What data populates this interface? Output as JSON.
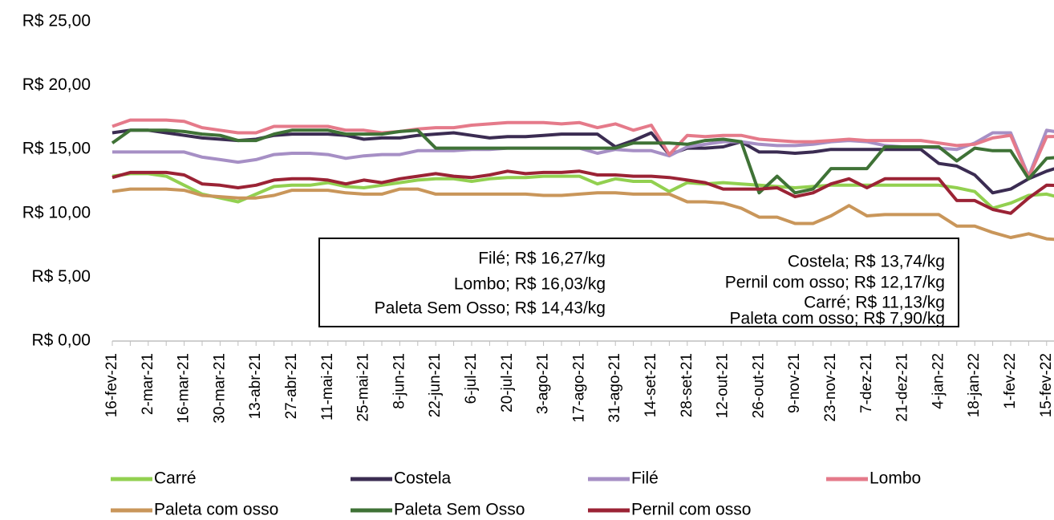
{
  "chart_data": {
    "type": "line",
    "categories": [
      "16-fev-21",
      null,
      "2-mar-21",
      null,
      "16-mar-21",
      null,
      "30-mar-21",
      null,
      "13-abr-21",
      null,
      "27-abr-21",
      null,
      "11-mai-21",
      null,
      "25-mai-21",
      null,
      "8-jun-21",
      null,
      "22-jun-21",
      null,
      "6-jul-21",
      null,
      "20-jul-21",
      null,
      "3-ago-21",
      null,
      "17-ago-21",
      null,
      "31-ago-21",
      null,
      "14-set-21",
      null,
      "28-set-21",
      null,
      "12-out-21",
      null,
      "26-out-21",
      null,
      "9-nov-21",
      null,
      "23-nov-21",
      null,
      "7-dez-21",
      null,
      "21-dez-21",
      null,
      "4-jan-22",
      null,
      "18-jan-22",
      null,
      "1-fev-22",
      null,
      "15-fev-22",
      null
    ],
    "series": [
      {
        "name": "Carré",
        "color": "#92d050",
        "values": [
          12.9,
          13.1,
          13.1,
          12.9,
          12.2,
          11.5,
          11.2,
          10.9,
          11.5,
          12.1,
          12.2,
          12.2,
          12.4,
          12.1,
          12.0,
          12.2,
          12.4,
          12.6,
          12.7,
          12.7,
          12.5,
          12.7,
          12.8,
          12.8,
          12.9,
          12.9,
          12.9,
          12.3,
          12.7,
          12.5,
          12.5,
          11.7,
          12.4,
          12.3,
          12.4,
          12.3,
          12.2,
          12.1,
          12.0,
          12.1,
          12.2,
          12.2,
          12.2,
          12.2,
          12.2,
          12.2,
          12.2,
          12.0,
          11.7,
          10.4,
          10.8,
          11.4,
          11.5,
          11.13
        ]
      },
      {
        "name": "Costela",
        "color": "#3b2c52",
        "values": [
          16.3,
          16.5,
          16.5,
          16.3,
          16.1,
          15.9,
          15.8,
          15.7,
          15.8,
          16.1,
          16.2,
          16.2,
          16.2,
          16.1,
          15.8,
          15.9,
          15.9,
          16.1,
          16.2,
          16.3,
          16.1,
          15.9,
          16.0,
          16.0,
          16.1,
          16.2,
          16.2,
          16.2,
          15.2,
          15.7,
          16.3,
          14.6,
          15.1,
          15.1,
          15.2,
          15.6,
          14.8,
          14.8,
          14.7,
          14.8,
          15.0,
          15.0,
          15.0,
          15.0,
          15.0,
          15.0,
          13.9,
          13.7,
          13.0,
          11.6,
          11.9,
          12.7,
          13.3,
          13.74
        ]
      },
      {
        "name": "Filé",
        "color": "#a68fc5",
        "values": [
          14.8,
          14.8,
          14.8,
          14.8,
          14.8,
          14.4,
          14.2,
          14.0,
          14.2,
          14.6,
          14.7,
          14.7,
          14.6,
          14.3,
          14.5,
          14.6,
          14.6,
          14.9,
          14.9,
          14.9,
          15.0,
          15.0,
          15.1,
          15.1,
          15.1,
          15.1,
          15.1,
          14.7,
          15.0,
          14.9,
          14.9,
          14.5,
          15.2,
          15.4,
          15.6,
          15.6,
          15.4,
          15.3,
          15.3,
          15.4,
          15.6,
          15.7,
          15.6,
          15.3,
          15.2,
          15.2,
          15.1,
          15.0,
          15.5,
          16.3,
          16.3,
          12.9,
          16.5,
          16.27
        ]
      },
      {
        "name": "Lombo",
        "color": "#e57a8a",
        "values": [
          16.8,
          17.3,
          17.3,
          17.3,
          17.2,
          16.7,
          16.5,
          16.3,
          16.3,
          16.8,
          16.8,
          16.8,
          16.8,
          16.5,
          16.5,
          16.3,
          16.4,
          16.6,
          16.7,
          16.7,
          16.9,
          17.0,
          17.1,
          17.1,
          17.1,
          17.0,
          17.1,
          16.7,
          17.0,
          16.5,
          16.9,
          14.6,
          16.1,
          16.0,
          16.1,
          16.1,
          15.8,
          15.7,
          15.6,
          15.6,
          15.7,
          15.8,
          15.7,
          15.7,
          15.7,
          15.7,
          15.5,
          15.3,
          15.4,
          15.9,
          16.1,
          12.8,
          16.0,
          16.03
        ]
      },
      {
        "name": "Paleta com osso",
        "color": "#c9965a",
        "values": [
          11.7,
          11.9,
          11.9,
          11.9,
          11.8,
          11.4,
          11.3,
          11.2,
          11.2,
          11.4,
          11.8,
          11.8,
          11.8,
          11.6,
          11.5,
          11.5,
          11.9,
          11.9,
          11.5,
          11.5,
          11.5,
          11.5,
          11.5,
          11.5,
          11.4,
          11.4,
          11.5,
          11.6,
          11.6,
          11.5,
          11.5,
          11.5,
          10.9,
          10.9,
          10.8,
          10.4,
          9.7,
          9.7,
          9.2,
          9.2,
          9.8,
          10.6,
          9.8,
          9.9,
          9.9,
          9.9,
          9.9,
          9.0,
          9.0,
          8.5,
          8.1,
          8.4,
          8.0,
          7.9
        ]
      },
      {
        "name": "Paleta Sem Osso",
        "color": "#3f7236",
        "values": [
          15.5,
          16.5,
          16.5,
          16.5,
          16.4,
          16.2,
          16.1,
          15.7,
          15.7,
          16.2,
          16.5,
          16.5,
          16.5,
          16.2,
          16.2,
          16.2,
          16.4,
          16.5,
          15.1,
          15.1,
          15.1,
          15.1,
          15.1,
          15.1,
          15.1,
          15.1,
          15.1,
          15.1,
          15.1,
          15.5,
          15.5,
          15.5,
          15.4,
          15.7,
          15.8,
          15.6,
          11.6,
          12.9,
          11.6,
          11.9,
          13.5,
          13.5,
          13.5,
          15.2,
          15.2,
          15.2,
          15.2,
          14.1,
          15.1,
          14.9,
          14.9,
          12.7,
          14.3,
          14.43
        ]
      },
      {
        "name": "Pernil com osso",
        "color": "#9b2335",
        "values": [
          12.8,
          13.2,
          13.2,
          13.2,
          13.0,
          12.3,
          12.2,
          12.0,
          12.2,
          12.6,
          12.7,
          12.7,
          12.6,
          12.3,
          12.6,
          12.4,
          12.7,
          12.9,
          13.1,
          12.9,
          12.8,
          13.0,
          13.3,
          13.1,
          13.2,
          13.2,
          13.3,
          13.0,
          13.0,
          12.9,
          12.9,
          12.8,
          12.6,
          12.4,
          11.9,
          11.9,
          11.9,
          12.0,
          11.3,
          11.6,
          12.3,
          12.7,
          12.0,
          12.7,
          12.7,
          12.7,
          12.7,
          11.0,
          11.0,
          10.3,
          10.0,
          11.2,
          12.2,
          12.17
        ]
      }
    ],
    "ylim": [
      0,
      25
    ],
    "yticks": [
      {
        "value": 0,
        "label": "R$ 0,00"
      },
      {
        "value": 5,
        "label": "R$ 5,00"
      },
      {
        "value": 10,
        "label": "R$ 10,00"
      },
      {
        "value": 15,
        "label": "R$ 15,00"
      },
      {
        "value": 20,
        "label": "R$ 20,00"
      },
      {
        "value": 25,
        "label": "R$ 25,00"
      }
    ],
    "grid": false,
    "legend": "bottom",
    "annotations": [
      "Filé; R$ 16,27/kg",
      "Lombo; R$ 16,03/kg",
      "Paleta Sem Osso; R$ 14,43/kg",
      "Costela; R$ 13,74/kg",
      "Pernil com osso; R$ 12,17/kg",
      "Carré; R$ 11,13/kg",
      "Paleta com osso; R$ 7,90/kg"
    ]
  }
}
